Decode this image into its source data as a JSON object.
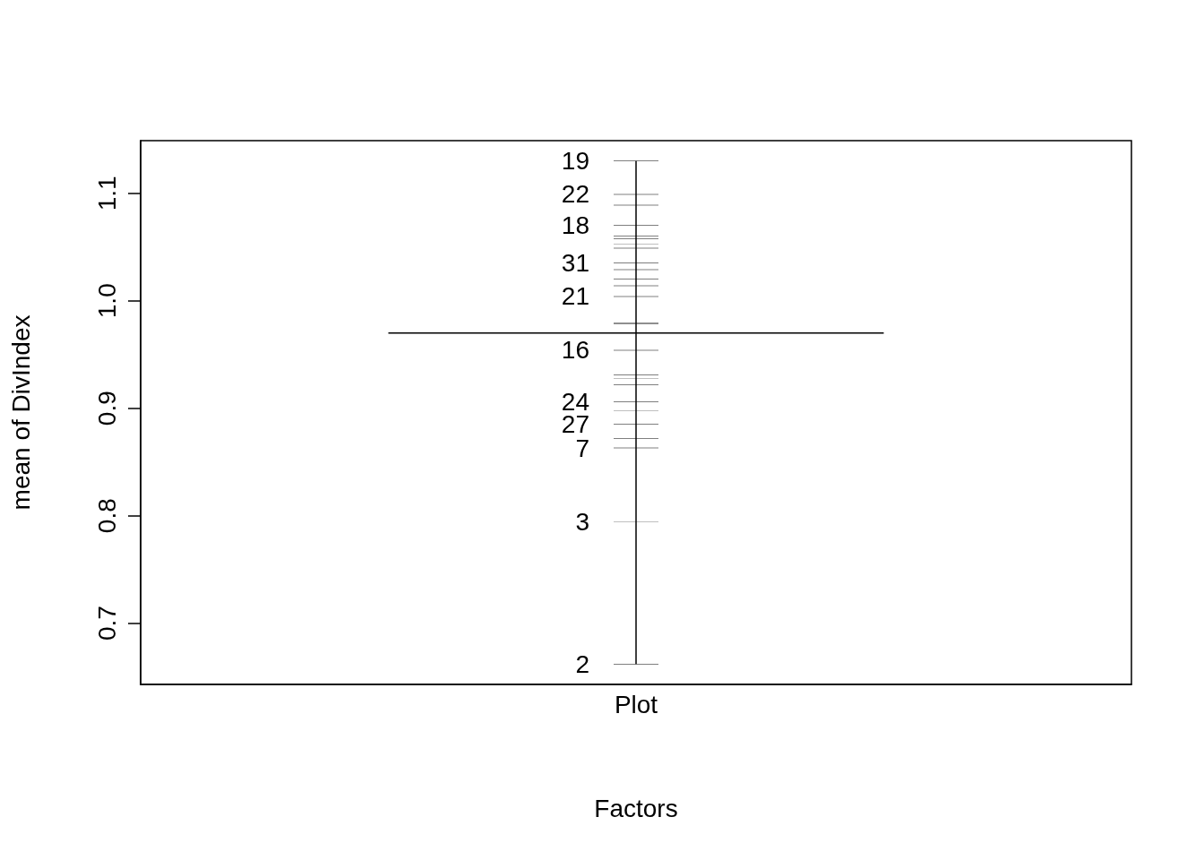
{
  "chart_data": {
    "type": "line",
    "xlabel": "Factors",
    "ylabel": "mean of DivIndex",
    "categories": [
      "Plot"
    ],
    "series": [
      {
        "color": "#000000",
        "x": [
          "Plot",
          "Plot",
          "Plot",
          "Plot",
          "Plot",
          "Plot",
          "Plot",
          "Plot",
          "Plot",
          "Plot",
          "Plot",
          "Plot",
          "Plot",
          "Plot",
          "Plot",
          "Plot",
          "Plot",
          "Plot",
          "Plot",
          "Plot",
          "Plot",
          "Plot",
          "Plot",
          "Plot",
          "Plot",
          "Plot"
        ],
        "values": [
          1.13,
          1.099,
          1.089,
          1.07,
          1.06,
          1.058,
          1.053,
          1.049,
          1.035,
          1.029,
          1.02,
          1.014,
          1.004,
          0.979,
          0.979,
          0.954,
          0.931,
          0.928,
          0.922,
          0.906,
          0.898,
          0.885,
          0.872,
          0.863,
          0.794,
          0.662
        ]
      }
    ],
    "ylim": [
      0.643,
      1.149
    ],
    "yticks": [
      0.7,
      0.8,
      0.9,
      {
        "value": 1,
        "label": "1.0"
      },
      1.1
    ],
    "ref_lines": [
      {
        "axis": "y",
        "value": 0.97,
        "color": "#000000"
      }
    ],
    "annotations": [
      {
        "text": "19",
        "x": "Plot",
        "y": 1.13
      },
      {
        "text": "22",
        "x": "Plot",
        "y": 1.099
      },
      {
        "text": "18",
        "x": "Plot",
        "y": 1.07
      },
      {
        "text": "31",
        "x": "Plot",
        "y": 1.035
      },
      {
        "text": "21",
        "x": "Plot",
        "y": 1.004
      },
      {
        "text": "16",
        "x": "Plot",
        "y": 0.954
      },
      {
        "text": "24",
        "x": "Plot",
        "y": 0.906
      },
      {
        "text": "27",
        "x": "Plot",
        "y": 0.885
      },
      {
        "text": "7",
        "x": "Plot",
        "y": 0.863
      },
      {
        "text": "3",
        "x": "Plot",
        "y": 0.794
      },
      {
        "text": "2",
        "x": "Plot",
        "y": 0.662
      }
    ]
  }
}
